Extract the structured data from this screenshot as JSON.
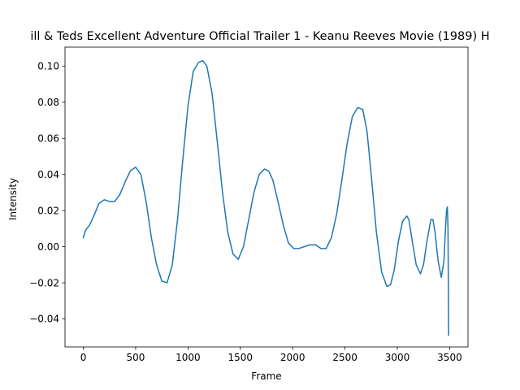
{
  "chart_data": {
    "type": "line",
    "title": "ill & Teds Excellent Adventure Official Trailer 1 - Keanu Reeves Movie (1989) H",
    "xlabel": "Frame",
    "ylabel": "Intensity",
    "xlim": [
      -175,
      3675
    ],
    "ylim": [
      -0.0555,
      0.1105
    ],
    "x_ticks": [
      0,
      500,
      1000,
      1500,
      2000,
      2500,
      3000,
      3500
    ],
    "x_tick_labels": [
      "0",
      "500",
      "1000",
      "1500",
      "2000",
      "2500",
      "3000",
      "3500"
    ],
    "y_ticks": [
      -0.04,
      -0.02,
      0.0,
      0.02,
      0.04,
      0.06,
      0.08,
      0.1
    ],
    "y_tick_labels": [
      "−0.04",
      "−0.02",
      "0.00",
      "0.02",
      "0.04",
      "0.06",
      "0.08",
      "0.10"
    ],
    "grid": false,
    "colors": {
      "line": "#1f77b4",
      "axes": "#000000",
      "background": "#ffffff"
    },
    "series": [
      {
        "x": [
          0,
          20,
          60,
          100,
          150,
          200,
          250,
          300,
          350,
          400,
          450,
          500,
          550,
          600,
          650,
          700,
          750,
          800,
          850,
          900,
          950,
          1000,
          1050,
          1100,
          1140,
          1180,
          1230,
          1280,
          1330,
          1380,
          1430,
          1480,
          1530,
          1580,
          1630,
          1680,
          1730,
          1770,
          1810,
          1860,
          1910,
          1960,
          2010,
          2060,
          2110,
          2160,
          2220,
          2270,
          2320,
          2370,
          2420,
          2470,
          2520,
          2570,
          2620,
          2670,
          2710,
          2750,
          2800,
          2850,
          2900,
          2935,
          2970,
          3010,
          3050,
          3090,
          3110,
          3140,
          3180,
          3220,
          3250,
          3280,
          3320,
          3340,
          3360,
          3390,
          3420,
          3445,
          3460,
          3470,
          3478,
          3484,
          3490
        ],
        "y": [
          0.005,
          0.009,
          0.012,
          0.017,
          0.024,
          0.026,
          0.025,
          0.025,
          0.029,
          0.036,
          0.042,
          0.044,
          0.04,
          0.025,
          0.005,
          -0.01,
          -0.019,
          -0.02,
          -0.01,
          0.015,
          0.048,
          0.078,
          0.097,
          0.102,
          0.103,
          0.1,
          0.085,
          0.058,
          0.03,
          0.008,
          -0.004,
          -0.007,
          0.0,
          0.015,
          0.03,
          0.04,
          0.043,
          0.042,
          0.037,
          0.025,
          0.012,
          0.002,
          -0.001,
          -0.001,
          0.0,
          0.001,
          0.001,
          -0.001,
          -0.001,
          0.005,
          0.018,
          0.037,
          0.057,
          0.072,
          0.077,
          0.076,
          0.064,
          0.04,
          0.008,
          -0.014,
          -0.022,
          -0.021,
          -0.013,
          0.003,
          0.014,
          0.017,
          0.015,
          0.004,
          -0.01,
          -0.015,
          -0.01,
          0.002,
          0.015,
          0.015,
          0.008,
          -0.008,
          -0.017,
          -0.008,
          0.01,
          0.02,
          0.022,
          0.01,
          -0.049
        ]
      }
    ]
  }
}
